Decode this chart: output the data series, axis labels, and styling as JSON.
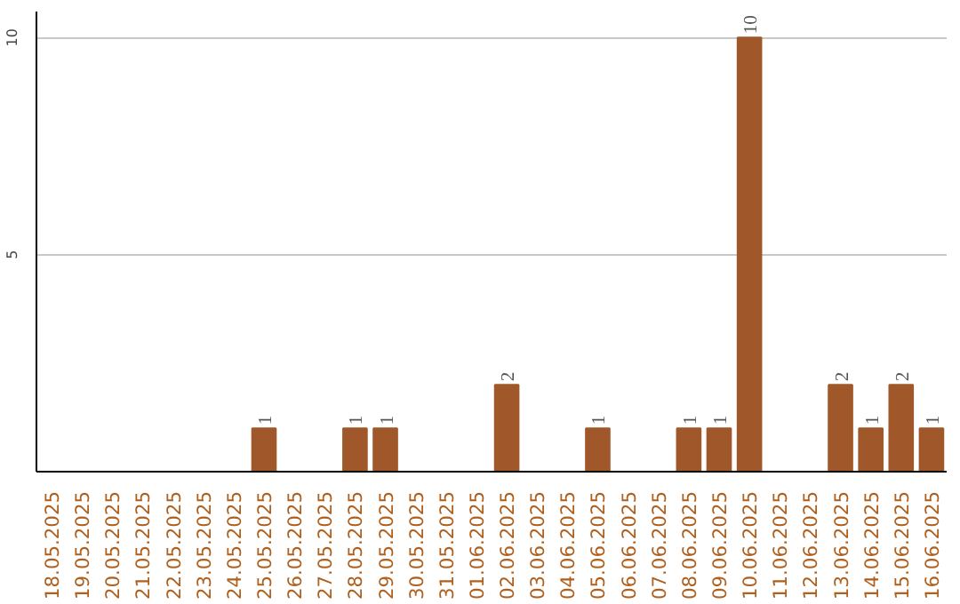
{
  "chart_data": {
    "type": "bar",
    "categories": [
      "18.05.2025",
      "19.05.2025",
      "20.05.2025",
      "21.05.2025",
      "22.05.2025",
      "23.05.2025",
      "24.05.2025",
      "25.05.2025",
      "26.05.2025",
      "27.05.2025",
      "28.05.2025",
      "29.05.2025",
      "30.05.2025",
      "31.05.2025",
      "01.06.2025",
      "02.06.2025",
      "03.06.2025",
      "04.06.2025",
      "05.06.2025",
      "06.06.2025",
      "07.06.2025",
      "08.06.2025",
      "09.06.2025",
      "10.06.2025",
      "11.06.2025",
      "12.06.2025",
      "13.06.2025",
      "14.06.2025",
      "15.06.2025",
      "16.06.2025"
    ],
    "values": [
      0,
      0,
      0,
      0,
      0,
      0,
      0,
      1,
      0,
      0,
      1,
      1,
      0,
      0,
      0,
      2,
      0,
      0,
      1,
      0,
      0,
      1,
      1,
      10,
      0,
      0,
      2,
      1,
      2,
      1
    ],
    "value_labels": [
      null,
      null,
      null,
      null,
      null,
      null,
      null,
      "1",
      null,
      null,
      "1",
      "1",
      null,
      null,
      null,
      "2",
      null,
      null,
      "1",
      null,
      null,
      "1",
      "1",
      "10",
      null,
      null,
      "2",
      "1",
      "2",
      "1"
    ],
    "color": "#a0582a",
    "ylim": [
      0,
      10.6
    ],
    "yticks": [
      5,
      10
    ],
    "grid": "y"
  }
}
